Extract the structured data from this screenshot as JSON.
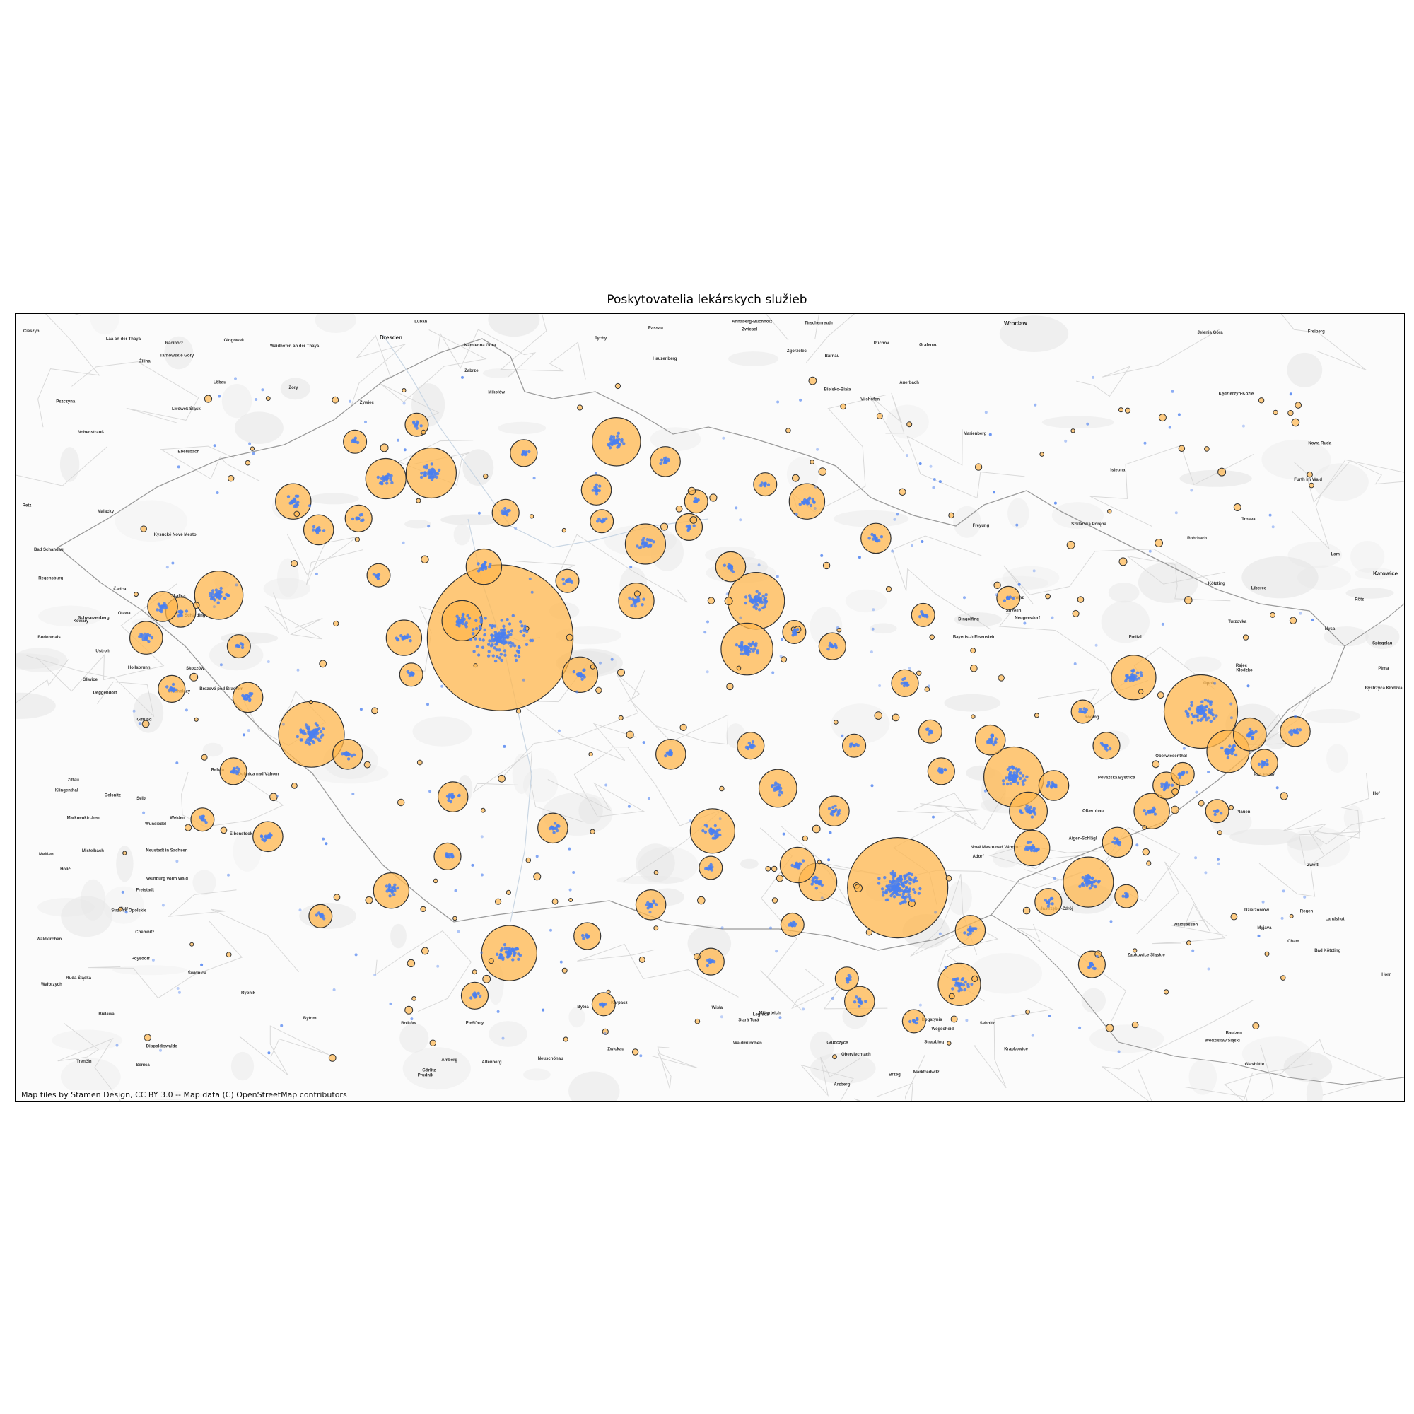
{
  "title": "Poskytovatelia lekárskych služieb",
  "attribution": "Map tiles by Stamen Design, CC BY 3.0 -- Map data (C) OpenStreetMap contributors",
  "colors": {
    "bubble_fill": "#ffb74d",
    "bubble_edge": "#333333",
    "provider_dot": "#4a7ff0",
    "basemap_bg": "#fbfbfb",
    "basemap_land": "#e6e6e6",
    "border_line": "#9a9a9a"
  },
  "basemap_labels": [
    {
      "name": "Dresden",
      "major": true
    },
    {
      "name": "Wroclaw",
      "major": true
    },
    {
      "name": "Katowice",
      "major": true
    },
    {
      "name": "Zittau"
    },
    {
      "name": "Liberec"
    },
    {
      "name": "Jelenia Góra"
    },
    {
      "name": "Wałbrzych"
    },
    {
      "name": "Opole"
    },
    {
      "name": "Gliwice"
    },
    {
      "name": "Plauen"
    },
    {
      "name": "Zwickau"
    },
    {
      "name": "Chemnitz"
    },
    {
      "name": "Freiberg"
    },
    {
      "name": "Pirna"
    },
    {
      "name": "Görlitz"
    },
    {
      "name": "Legnica"
    },
    {
      "name": "Świdnica"
    },
    {
      "name": "Kłodzko"
    },
    {
      "name": "Nysa"
    },
    {
      "name": "Racibórz"
    },
    {
      "name": "Rybnik"
    },
    {
      "name": "Tychy"
    },
    {
      "name": "Bielsko-Biała"
    },
    {
      "name": "Žilina"
    },
    {
      "name": "Trenčín"
    },
    {
      "name": "Piešťany"
    },
    {
      "name": "Trnava"
    },
    {
      "name": "Senica"
    },
    {
      "name": "Skalica"
    },
    {
      "name": "Mistelbach"
    },
    {
      "name": "Hollabrunn"
    },
    {
      "name": "Horn"
    },
    {
      "name": "Zwettl"
    },
    {
      "name": "Freistadt"
    },
    {
      "name": "Passau"
    },
    {
      "name": "Deggendorf"
    },
    {
      "name": "Straubing"
    },
    {
      "name": "Regen"
    },
    {
      "name": "Cham"
    },
    {
      "name": "Weiden"
    },
    {
      "name": "Amberg"
    },
    {
      "name": "Marktredwitz"
    },
    {
      "name": "Hof"
    },
    {
      "name": "Selb"
    },
    {
      "name": "Regensburg"
    },
    {
      "name": "Landshut"
    },
    {
      "name": "Dingolfing"
    },
    {
      "name": "Vilshofen"
    },
    {
      "name": "Schärding"
    },
    {
      "name": "Rohrbach"
    },
    {
      "name": "Gmünd"
    },
    {
      "name": "Laa an der Thaya"
    },
    {
      "name": "Poysdorf"
    },
    {
      "name": "Malacky"
    },
    {
      "name": "Myjava"
    },
    {
      "name": "Nové Mesto nad Váhom"
    },
    {
      "name": "Púchov"
    },
    {
      "name": "Považská Bystrica"
    },
    {
      "name": "Čadca"
    },
    {
      "name": "Żywiec"
    },
    {
      "name": "Cieszyn"
    },
    {
      "name": "Jastrzębie-Zdrój"
    },
    {
      "name": "Wodzisław Śląski"
    },
    {
      "name": "Kędzierzyn-Koźle"
    },
    {
      "name": "Prudnik"
    },
    {
      "name": "Głuchołazy"
    },
    {
      "name": "Bystrzyca Kłodzka"
    },
    {
      "name": "Nowa Ruda"
    },
    {
      "name": "Kamienna Góra"
    },
    {
      "name": "Bolków"
    },
    {
      "name": "Lubań"
    },
    {
      "name": "Bogatynia"
    },
    {
      "name": "Bautzen"
    },
    {
      "name": "Kamenz"
    },
    {
      "name": "Meißen"
    },
    {
      "name": "Freital"
    },
    {
      "name": "Altenberg"
    },
    {
      "name": "Olbernhau"
    },
    {
      "name": "Annaberg-Buchholz"
    },
    {
      "name": "Aue"
    },
    {
      "name": "Klingenthal"
    },
    {
      "name": "Oelsnitz"
    },
    {
      "name": "Rehau"
    },
    {
      "name": "Waldsassen"
    },
    {
      "name": "Tirschenreuth"
    },
    {
      "name": "Vohenstrauß"
    },
    {
      "name": "Oberviechtach"
    },
    {
      "name": "Furth im Wald"
    },
    {
      "name": "Kötzting"
    },
    {
      "name": "Zwiesel"
    },
    {
      "name": "Grafenau"
    },
    {
      "name": "Freyung"
    },
    {
      "name": "Waldkirchen"
    },
    {
      "name": "Hauzenberg"
    },
    {
      "name": "Wegscheid"
    },
    {
      "name": "Aigen-Schlägl"
    },
    {
      "name": "Waidhofen an der Thaya"
    },
    {
      "name": "Retz"
    },
    {
      "name": "Holíč"
    },
    {
      "name": "Brezová pod Bradlom"
    },
    {
      "name": "Stará Turá"
    },
    {
      "name": "Dubnica nad Váhom"
    },
    {
      "name": "Bytča"
    },
    {
      "name": "Rajec"
    },
    {
      "name": "Kysucké Nové Mesto"
    },
    {
      "name": "Turzovka"
    },
    {
      "name": "Istebna"
    },
    {
      "name": "Wisła"
    },
    {
      "name": "Ustroń"
    },
    {
      "name": "Skoczów"
    },
    {
      "name": "Pszczyna"
    },
    {
      "name": "Żory"
    },
    {
      "name": "Mikołów"
    },
    {
      "name": "Ruda Śląska"
    },
    {
      "name": "Zabrze"
    },
    {
      "name": "Bytom"
    },
    {
      "name": "Tarnowskie Góry"
    },
    {
      "name": "Strzelce Opolskie"
    },
    {
      "name": "Krapkowice"
    },
    {
      "name": "Głogówek"
    },
    {
      "name": "Głubczyce"
    },
    {
      "name": "Brzeg"
    },
    {
      "name": "Oława"
    },
    {
      "name": "Strzelin"
    },
    {
      "name": "Ząbkowice Śląskie"
    },
    {
      "name": "Dzierżoniów"
    },
    {
      "name": "Bielawa"
    },
    {
      "name": "Kowary"
    },
    {
      "name": "Karpacz"
    },
    {
      "name": "Szklarska Poręba"
    },
    {
      "name": "Lwówek Śląski"
    },
    {
      "name": "Zgorzelec"
    },
    {
      "name": "Löbau"
    },
    {
      "name": "Ebersbach"
    },
    {
      "name": "Neugersdorf"
    },
    {
      "name": "Sebnitz"
    },
    {
      "name": "Neustadt in Sachsen"
    },
    {
      "name": "Bad Schandau"
    },
    {
      "name": "Dippoldiswalde"
    },
    {
      "name": "Glashütte"
    },
    {
      "name": "Marienberg"
    },
    {
      "name": "Oberwiesenthal"
    },
    {
      "name": "Schwarzenberg"
    },
    {
      "name": "Eibenstock"
    },
    {
      "name": "Auerbach"
    },
    {
      "name": "Markneukirchen"
    },
    {
      "name": "Adorf"
    },
    {
      "name": "Bad Elster"
    },
    {
      "name": "Arzberg"
    },
    {
      "name": "Wunsiedel"
    },
    {
      "name": "Mitterteich"
    },
    {
      "name": "Bärnau"
    },
    {
      "name": "Waldmünchen"
    },
    {
      "name": "Rötz"
    },
    {
      "name": "Neunburg vorm Wald"
    },
    {
      "name": "Roding"
    },
    {
      "name": "Bad Kötzting"
    },
    {
      "name": "Lam"
    },
    {
      "name": "Bodenmais"
    },
    {
      "name": "Bayerisch Eisenstein"
    },
    {
      "name": "Spiegelau"
    },
    {
      "name": "Neuschönau"
    }
  ],
  "bubbles": [
    {
      "lon": 14.42,
      "lat": 50.08,
      "count": 1180
    },
    {
      "lon": 16.61,
      "lat": 49.2,
      "count": 560
    },
    {
      "lon": 18.28,
      "lat": 49.82,
      "count": 300
    },
    {
      "lon": 13.38,
      "lat": 49.74,
      "count": 240
    },
    {
      "lon": 17.25,
      "lat": 49.59,
      "count": 200
    },
    {
      "lon": 15.83,
      "lat": 50.21,
      "count": 180
    },
    {
      "lon": 14.47,
      "lat": 48.97,
      "count": 170
    },
    {
      "lon": 15.78,
      "lat": 50.04,
      "count": 150
    },
    {
      "lon": 17.66,
      "lat": 49.22,
      "count": 140
    },
    {
      "lon": 14.04,
      "lat": 50.66,
      "count": 140
    },
    {
      "lon": 15.06,
      "lat": 50.77,
      "count": 130
    },
    {
      "lon": 12.87,
      "lat": 50.23,
      "count": 130
    },
    {
      "lon": 15.59,
      "lat": 49.4,
      "count": 110
    },
    {
      "lon": 16.95,
      "lat": 48.86,
      "count": 100
    },
    {
      "lon": 17.91,
      "lat": 49.94,
      "count": 110
    },
    {
      "lon": 18.43,
      "lat": 49.68,
      "count": 100
    },
    {
      "lon": 14.21,
      "lat": 50.14,
      "count": 90
    },
    {
      "lon": 13.79,
      "lat": 50.64,
      "count": 90
    },
    {
      "lon": 15.22,
      "lat": 50.41,
      "count": 90
    },
    {
      "lon": 16.17,
      "lat": 49.22,
      "count": 80
    },
    {
      "lon": 17.33,
      "lat": 49.47,
      "count": 80
    },
    {
      "lon": 15.95,
      "lat": 49.55,
      "count": 80
    },
    {
      "lon": 13.82,
      "lat": 49.19,
      "count": 70
    },
    {
      "lon": 14.86,
      "lat": 49.95,
      "count": 70
    },
    {
      "lon": 16.06,
      "lat": 49.28,
      "count": 70
    },
    {
      "lon": 14.33,
      "lat": 50.33,
      "count": 70
    },
    {
      "lon": 13.89,
      "lat": 50.08,
      "count": 70
    },
    {
      "lon": 13.28,
      "lat": 50.56,
      "count": 70
    },
    {
      "lon": 15.17,
      "lat": 50.21,
      "count": 70
    },
    {
      "lon": 16.11,
      "lat": 50.56,
      "count": 70
    },
    {
      "lon": 17.35,
      "lat": 49.34,
      "count": 70
    },
    {
      "lon": 18.01,
      "lat": 49.47,
      "count": 70
    },
    {
      "lon": 18.55,
      "lat": 49.74,
      "count": 60
    },
    {
      "lon": 18.8,
      "lat": 49.75,
      "count": 50
    },
    {
      "lon": 12.47,
      "lat": 50.08,
      "count": 60
    },
    {
      "lon": 13.03,
      "lat": 49.87,
      "count": 50
    },
    {
      "lon": 14.16,
      "lat": 49.52,
      "count": 50
    },
    {
      "lon": 15.36,
      "lat": 49.67,
      "count": 50
    },
    {
      "lon": 16.49,
      "lat": 50.43,
      "count": 50
    },
    {
      "lon": 14.95,
      "lat": 50.6,
      "count": 50
    },
    {
      "lon": 15.69,
      "lat": 50.33,
      "count": 50
    },
    {
      "lon": 16.26,
      "lat": 49.47,
      "count": 50
    },
    {
      "lon": 17.47,
      "lat": 49.56,
      "count": 50
    },
    {
      "lon": 17.82,
      "lat": 49.36,
      "count": 50
    },
    {
      "lon": 17.12,
      "lat": 49.72,
      "count": 50
    },
    {
      "lon": 17.01,
      "lat": 49.05,
      "count": 50
    },
    {
      "lon": 16.4,
      "lat": 48.8,
      "count": 50
    },
    {
      "lon": 15.25,
      "lat": 49.14,
      "count": 50
    },
    {
      "lon": 14.71,
      "lat": 49.41,
      "count": 50
    },
    {
      "lon": 13.58,
      "lat": 49.67,
      "count": 50
    },
    {
      "lon": 13.14,
      "lat": 49.38,
      "count": 50
    },
    {
      "lon": 12.66,
      "lat": 50.17,
      "count": 50
    },
    {
      "lon": 12.56,
      "lat": 50.19,
      "count": 50
    },
    {
      "lon": 13.42,
      "lat": 50.46,
      "count": 50
    },
    {
      "lon": 15.33,
      "lat": 50.7,
      "count": 50
    },
    {
      "lon": 14.55,
      "lat": 50.73,
      "count": 40
    },
    {
      "lon": 15.8,
      "lat": 49.7,
      "count": 40
    },
    {
      "lon": 18.09,
      "lat": 49.56,
      "count": 40
    },
    {
      "lon": 17.76,
      "lat": 49.7,
      "count": 40
    },
    {
      "lon": 16.25,
      "lat": 50.05,
      "count": 40
    },
    {
      "lon": 14.13,
      "lat": 49.31,
      "count": 40
    },
    {
      "lon": 15.58,
      "lat": 48.94,
      "count": 40
    },
    {
      "lon": 14.9,
      "lat": 49.03,
      "count": 40
    },
    {
      "lon": 14.28,
      "lat": 48.82,
      "count": 40
    },
    {
      "lon": 12.95,
      "lat": 49.61,
      "count": 40
    },
    {
      "lon": 12.61,
      "lat": 49.9,
      "count": 40
    },
    {
      "lon": 13.64,
      "lat": 50.5,
      "count": 40
    },
    {
      "lon": 14.45,
      "lat": 50.52,
      "count": 40
    },
    {
      "lon": 16.85,
      "lat": 49.61,
      "count": 40
    },
    {
      "lon": 17.68,
      "lat": 48.93,
      "count": 40
    },
    {
      "lon": 17.44,
      "lat": 49.15,
      "count": 40
    },
    {
      "lon": 15.46,
      "lat": 50.47,
      "count": 40
    },
    {
      "lon": 16.65,
      "lat": 49.92,
      "count": 40
    },
    {
      "lon": 18.63,
      "lat": 49.64,
      "count": 40
    },
    {
      "lon": 17.22,
      "lat": 50.22,
      "count": 30
    },
    {
      "lon": 16.79,
      "lat": 49.75,
      "count": 30
    },
    {
      "lon": 16.04,
      "lat": 50.1,
      "count": 30
    },
    {
      "lon": 15.5,
      "lat": 50.56,
      "count": 30
    },
    {
      "lon": 14.79,
      "lat": 50.28,
      "count": 30
    },
    {
      "lon": 13.62,
      "lat": 50.77,
      "count": 30
    },
    {
      "lon": 13.96,
      "lat": 50.83,
      "count": 30
    },
    {
      "lon": 14.98,
      "lat": 50.49,
      "count": 30
    },
    {
      "lon": 15.58,
      "lat": 49.27,
      "count": 30
    },
    {
      "lon": 16.03,
      "lat": 49.07,
      "count": 30
    },
    {
      "lon": 16.33,
      "lat": 48.88,
      "count": 30
    },
    {
      "lon": 17.87,
      "lat": 49.17,
      "count": 30
    },
    {
      "lon": 18.37,
      "lat": 49.47,
      "count": 30
    },
    {
      "lon": 13.93,
      "lat": 49.95,
      "count": 30
    },
    {
      "lon": 12.78,
      "lat": 49.44,
      "count": 30
    },
    {
      "lon": 13.43,
      "lat": 49.1,
      "count": 30
    },
    {
      "lon": 14.99,
      "lat": 48.79,
      "count": 30
    },
    {
      "lon": 13.75,
      "lat": 50.3,
      "count": 30
    },
    {
      "lon": 12.98,
      "lat": 50.05,
      "count": 30
    },
    {
      "lon": 15.88,
      "lat": 50.62,
      "count": 30
    },
    {
      "lon": 16.37,
      "lat": 49.7,
      "count": 30
    },
    {
      "lon": 16.75,
      "lat": 50.16,
      "count": 30
    },
    {
      "lon": 17.63,
      "lat": 49.82,
      "count": 30
    },
    {
      "lon": 18.18,
      "lat": 49.6,
      "count": 30
    },
    {
      "lon": 16.7,
      "lat": 48.73,
      "count": 30
    }
  ]
}
